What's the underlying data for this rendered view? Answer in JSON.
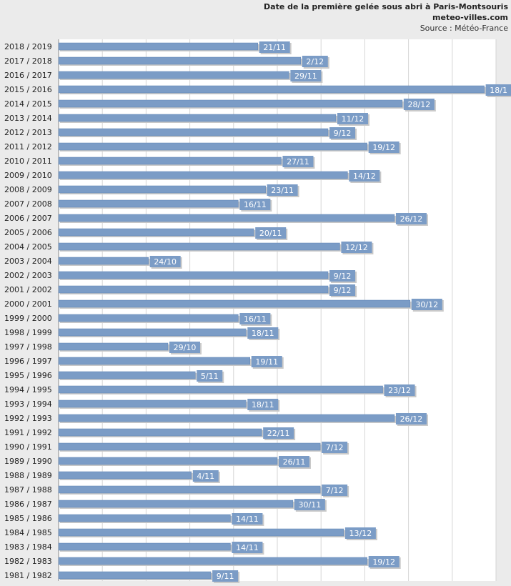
{
  "header": {
    "title": "Date de la première gelée sous abri à Paris-Montsouris",
    "site": "meteo-villes.com",
    "source": "Source : Météo-France"
  },
  "colors": {
    "bar": "#7b9cc6",
    "bar_edge": "#5f83b3",
    "label_box": "#7b9cc6",
    "plot_bg": "#ffffff",
    "grid": "#d6d6d6",
    "page_bg": "#ebebeb"
  },
  "chart_data": {
    "type": "bar",
    "orientation": "horizontal",
    "value_unit": "days after October 1",
    "grid": true,
    "categories": [
      "2018 / 2019",
      "2017 / 2018",
      "2016 / 2017",
      "2015 / 2016",
      "2014 / 2015",
      "2013 / 2014",
      "2012 / 2013",
      "2011 / 2012",
      "2010 / 2011",
      "2009 / 2010",
      "2008 / 2009",
      "2007 / 2008",
      "2006 / 2007",
      "2005 / 2006",
      "2004 / 2005",
      "2003 / 2004",
      "2002 / 2003",
      "2001 / 2002",
      "2000 / 2001",
      "1999 / 2000",
      "1998 / 1999",
      "1997 / 1998",
      "1996 / 1997",
      "1995 / 1996",
      "1994 / 1995",
      "1993 / 1994",
      "1992 / 1993",
      "1991 / 1992",
      "1990 / 1991",
      "1989 / 1990",
      "1988 / 1989",
      "1987 / 1988",
      "1986 / 1987",
      "1985 / 1986",
      "1984 / 1985",
      "1983 / 1984",
      "1982 / 1983",
      "1981 / 1982"
    ],
    "labels": [
      "21/11",
      "2/12",
      "29/11",
      "18/1",
      "28/12",
      "11/12",
      "9/12",
      "19/12",
      "27/11",
      "14/12",
      "23/11",
      "16/11",
      "26/12",
      "20/11",
      "12/12",
      "24/10",
      "9/12",
      "9/12",
      "30/12",
      "16/11",
      "18/11",
      "29/10",
      "19/11",
      "5/11",
      "23/12",
      "18/11",
      "26/12",
      "22/11",
      "7/12",
      "26/11",
      "4/11",
      "7/12",
      "30/11",
      "14/11",
      "13/12",
      "14/11",
      "19/12",
      "9/11"
    ],
    "values": [
      51,
      62,
      59,
      109,
      88,
      71,
      69,
      79,
      57,
      74,
      53,
      46,
      86,
      50,
      72,
      23,
      69,
      69,
      90,
      46,
      48,
      28,
      49,
      35,
      83,
      48,
      86,
      52,
      67,
      56,
      34,
      67,
      60,
      44,
      73,
      44,
      79,
      39
    ],
    "xlim": [
      0,
      112
    ]
  }
}
